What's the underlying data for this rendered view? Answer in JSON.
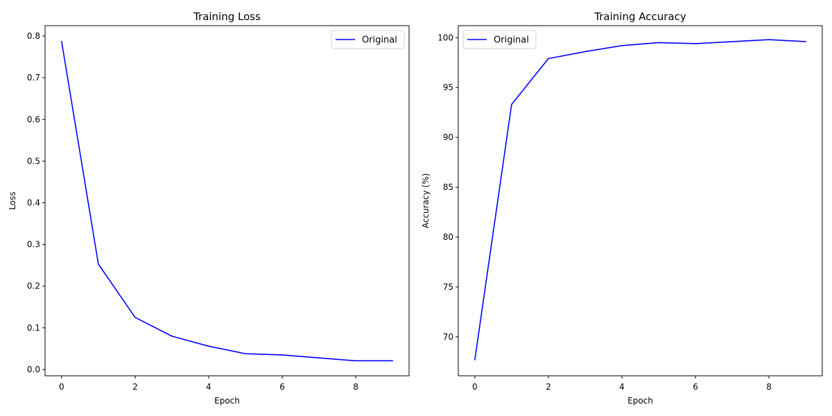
{
  "chart_data": [
    {
      "type": "line",
      "title": "Training Loss",
      "xlabel": "Epoch",
      "ylabel": "Loss",
      "xlim": [
        -0.45,
        9.45
      ],
      "ylim": [
        -0.015,
        0.825
      ],
      "xticks": [
        0,
        2,
        4,
        6,
        8
      ],
      "xtick_labels": [
        "0",
        "2",
        "4",
        "6",
        "8"
      ],
      "yticks": [
        0.0,
        0.1,
        0.2,
        0.3,
        0.4,
        0.5,
        0.6,
        0.7,
        0.8
      ],
      "ytick_labels": [
        "0.0",
        "0.1",
        "0.2",
        "0.3",
        "0.4",
        "0.5",
        "0.6",
        "0.7",
        "0.8"
      ],
      "grid": false,
      "legend_position": "upper right",
      "series": [
        {
          "name": "Original",
          "color": "#0000ff",
          "x": [
            0,
            1,
            2,
            3,
            4,
            5,
            6,
            7,
            8,
            9
          ],
          "y": [
            0.787,
            0.253,
            0.125,
            0.08,
            0.056,
            0.038,
            0.035,
            0.028,
            0.021,
            0.021
          ]
        }
      ]
    },
    {
      "type": "line",
      "title": "Training Accuracy",
      "xlabel": "Epoch",
      "ylabel": "Accuracy (%)",
      "xlim": [
        -0.45,
        9.45
      ],
      "ylim": [
        66.1,
        101.2
      ],
      "xticks": [
        0,
        2,
        4,
        6,
        8
      ],
      "xtick_labels": [
        "0",
        "2",
        "4",
        "6",
        "8"
      ],
      "yticks": [
        70,
        75,
        80,
        85,
        90,
        95,
        100
      ],
      "ytick_labels": [
        "70",
        "75",
        "80",
        "85",
        "90",
        "95",
        "100"
      ],
      "grid": false,
      "legend_position": "upper left",
      "series": [
        {
          "name": "Original",
          "color": "#0000ff",
          "x": [
            0,
            1,
            2,
            3,
            4,
            5,
            6,
            7,
            8,
            9
          ],
          "y": [
            67.7,
            93.3,
            97.9,
            98.6,
            99.2,
            99.5,
            99.4,
            99.6,
            99.8,
            99.6
          ]
        }
      ]
    }
  ]
}
